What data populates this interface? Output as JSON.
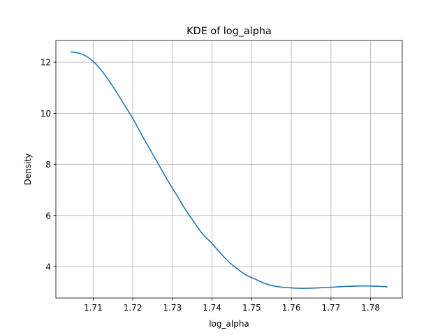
{
  "chart_data": {
    "type": "line",
    "title": "KDE of log_alpha",
    "xlabel": "log_alpha",
    "ylabel": "Density",
    "xlim": [
      1.7006,
      1.788
    ],
    "ylim": [
      2.77,
      12.85
    ],
    "grid": true,
    "line_color": "#1f77b4",
    "x_ticks": [
      {
        "value": 1.71,
        "label": "1.71"
      },
      {
        "value": 1.72,
        "label": "1.72"
      },
      {
        "value": 1.73,
        "label": "1.73"
      },
      {
        "value": 1.74,
        "label": "1.74"
      },
      {
        "value": 1.75,
        "label": "1.75"
      },
      {
        "value": 1.76,
        "label": "1.76"
      },
      {
        "value": 1.77,
        "label": "1.77"
      },
      {
        "value": 1.78,
        "label": "1.78"
      }
    ],
    "y_ticks": [
      {
        "value": 4,
        "label": "4"
      },
      {
        "value": 6,
        "label": "6"
      },
      {
        "value": 8,
        "label": "8"
      },
      {
        "value": 10,
        "label": "10"
      },
      {
        "value": 12,
        "label": "12"
      }
    ],
    "series": [
      {
        "x": [
          1.7044,
          1.7065,
          1.7088,
          1.711,
          1.7132,
          1.7154,
          1.7176,
          1.72,
          1.7221,
          1.7243,
          1.7265,
          1.7287,
          1.731,
          1.7331,
          1.7353,
          1.7375,
          1.74,
          1.742,
          1.744,
          1.7463,
          1.7485,
          1.751,
          1.753,
          1.755,
          1.7573,
          1.7595,
          1.762,
          1.7638,
          1.766,
          1.7685,
          1.771,
          1.773,
          1.775,
          1.7773,
          1.7795,
          1.782,
          1.7841
        ],
        "y": [
          12.4,
          12.35,
          12.18,
          11.88,
          11.45,
          10.95,
          10.4,
          9.8,
          9.2,
          8.6,
          8.0,
          7.4,
          6.82,
          6.28,
          5.78,
          5.3,
          4.9,
          4.55,
          4.22,
          3.92,
          3.68,
          3.5,
          3.36,
          3.26,
          3.2,
          3.17,
          3.15,
          3.15,
          3.16,
          3.18,
          3.2,
          3.22,
          3.23,
          3.24,
          3.24,
          3.23,
          3.21
        ]
      }
    ]
  }
}
